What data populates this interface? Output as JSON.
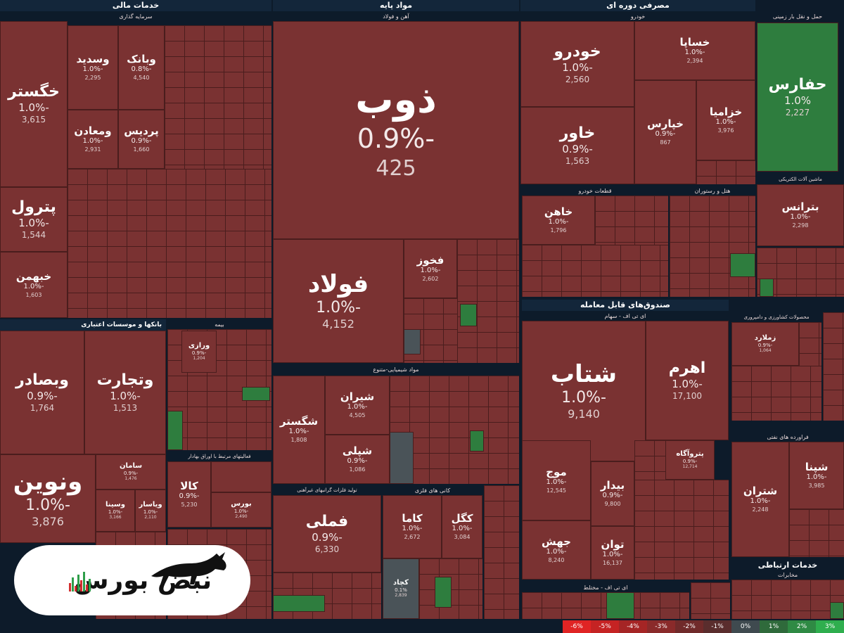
{
  "sectors": {
    "financial": {
      "title": "خدمات مالی",
      "sub": "سرمایه گذاری"
    },
    "base": {
      "title": "مواد پایه",
      "sub": "آهن و فولاد"
    },
    "cyclical": {
      "title": "مصرفی دوره ای",
      "sub": "خودرو"
    },
    "rail": {
      "title": "حمل و نقل بار زمینی"
    },
    "banks": {
      "title": "بانکها و موسسات اعتباری"
    },
    "insurance": {
      "title": "بیمه"
    },
    "chem": {
      "title": "مواد شیمیایی-متنوع"
    },
    "funds": {
      "title": "صندوق‌های قابل معامله",
      "sub": "ای تی اف - سهام"
    },
    "energy": {
      "title": "انرژی",
      "sub": "فراورده های نفتی"
    },
    "telecom": {
      "title": "خدمات ارتباطی",
      "sub": "مخابرات"
    },
    "metals": {
      "title": "کانی های فلزی"
    },
    "steelprod": {
      "title": "تولید فلزات گرانبهای غیرآهنی"
    },
    "machinery": {
      "title": "ماشین آلات الکتریکی"
    },
    "parts": {
      "title": "قطعات خودرو"
    },
    "hotel": {
      "title": "هتل و رستوران"
    },
    "agri": {
      "title": "محصولات کشاورزی و دامپروری"
    },
    "etfmixed": {
      "title": "ای تی اف - مختلط"
    },
    "bonds": {
      "title": "فعالیتهای مرتبط با اوراق بهادار"
    }
  },
  "tiles": [
    {
      "id": "zob",
      "name": "ذوب",
      "pct": "-0.9%",
      "val": "425"
    },
    {
      "id": "foolad",
      "name": "فولاد",
      "pct": "-1.0%",
      "val": "4,152"
    },
    {
      "id": "fakhooz",
      "name": "فخوز",
      "pct": "-1.0%",
      "val": "2,602"
    },
    {
      "id": "khodro",
      "name": "خودرو",
      "pct": "-1.0%",
      "val": "2,560"
    },
    {
      "id": "khavar",
      "name": "خاور",
      "pct": "-0.9%",
      "val": "1,563"
    },
    {
      "id": "khsapa",
      "name": "خساپا",
      "pct": "-1.0%",
      "val": "2,394"
    },
    {
      "id": "khpars",
      "name": "خپارس",
      "pct": "-0.9%",
      "val": "867"
    },
    {
      "id": "khzamia",
      "name": "خزامیا",
      "pct": "-1.0%",
      "val": "3,976"
    },
    {
      "id": "hafars",
      "name": "حفارس",
      "pct": "1.0%",
      "val": "2,227"
    },
    {
      "id": "khegostar",
      "name": "خگستر",
      "pct": "-1.0%",
      "val": "3,615"
    },
    {
      "id": "petrol",
      "name": "پترول",
      "pct": "-1.0%",
      "val": "1,544"
    },
    {
      "id": "khbahman",
      "name": "خبهمن",
      "pct": "-1.0%",
      "val": "1,603"
    },
    {
      "id": "vasadid",
      "name": "وسدید",
      "pct": "-1.0%",
      "val": "2,295"
    },
    {
      "id": "vabank",
      "name": "وبانک",
      "pct": "-0.8%",
      "val": "4,540"
    },
    {
      "id": "vamaaden",
      "name": "ومعادن",
      "pct": "-1.0%",
      "val": "2,931"
    },
    {
      "id": "pardis",
      "name": "پردیس",
      "pct": "-0.9%",
      "val": "1,660"
    },
    {
      "id": "vabsader",
      "name": "وبصادر",
      "pct": "-0.9%",
      "val": "1,764"
    },
    {
      "id": "vatejarat",
      "name": "وتجارت",
      "pct": "-1.0%",
      "val": "1,513"
    },
    {
      "id": "vanovin",
      "name": "ونوین",
      "pct": "-1.0%",
      "val": "3,876"
    },
    {
      "id": "shatab",
      "name": "شتاب",
      "pct": "-1.0%",
      "val": "9,140"
    },
    {
      "id": "ahrom",
      "name": "اهرم",
      "pct": "-1.0%",
      "val": "17,100"
    },
    {
      "id": "moj",
      "name": "موج",
      "pct": "-1.0%",
      "val": "12,545"
    },
    {
      "id": "jahesh",
      "name": "جهش",
      "pct": "-1.0%",
      "val": "8,240"
    },
    {
      "id": "tavan",
      "name": "توان",
      "pct": "-1.0%",
      "val": "16,137"
    },
    {
      "id": "shiran",
      "name": "شیران",
      "pct": "-1.0%",
      "val": "4,505"
    },
    {
      "id": "shegostar",
      "name": "شگستر",
      "pct": "-1.0%",
      "val": "1,808"
    },
    {
      "id": "shepli",
      "name": "شپلی",
      "pct": "-0.9%",
      "val": "1,086"
    },
    {
      "id": "femli",
      "name": "فملی",
      "pct": "-0.9%",
      "val": "6,330"
    },
    {
      "id": "kama",
      "name": "کاما",
      "pct": "-1.0%",
      "val": "2,672"
    },
    {
      "id": "kegol",
      "name": "کگل",
      "pct": "-1.0%",
      "val": "3,084"
    },
    {
      "id": "kachad",
      "name": "کچاد",
      "pct": "0.1%",
      "val": "2,839"
    },
    {
      "id": "betrans",
      "name": "بترانس",
      "pct": "-1.0%",
      "val": "2,298"
    },
    {
      "id": "khahen",
      "name": "خاهن",
      "pct": "-1.0%",
      "val": "1,796"
    },
    {
      "id": "shatran",
      "name": "شتران",
      "pct": "-1.0%",
      "val": "2,248"
    },
    {
      "id": "shepna",
      "name": "شپنا",
      "pct": "-1.0%",
      "val": "3,985"
    },
    {
      "id": "kala",
      "name": "کالا",
      "pct": "-0.9%",
      "val": "5,230"
    },
    {
      "id": "bours",
      "name": "بورس",
      "pct": "-1.0%",
      "val": "2,490"
    },
    {
      "id": "varazi",
      "name": "ورازی",
      "pct": "-0.9%",
      "val": "1,204"
    },
    {
      "id": "zemelard",
      "name": "زملارد",
      "pct": "-0.9%",
      "val": "1,064"
    },
    {
      "id": "petrovagah",
      "name": "پتروآگاه",
      "pct": "-0.9%",
      "val": "12,714"
    },
    {
      "id": "bidar",
      "name": "بیدار",
      "pct": "-0.9%",
      "val": "9,800"
    },
    {
      "id": "saman",
      "name": "سامان",
      "pct": "-0.9%",
      "val": "1,476"
    },
    {
      "id": "vasina",
      "name": "وسینا",
      "pct": "-1.0%",
      "val": "3,166"
    },
    {
      "id": "viasar",
      "name": "ویاسار",
      "pct": "-1.0%",
      "val": "2,110"
    }
  ],
  "legend": [
    "-6%",
    "-5%",
    "-4%",
    "-3%",
    "-2%",
    "-1%",
    "0%",
    "1%",
    "2%",
    "3%"
  ],
  "legend_colors": [
    "#e02424",
    "#c52323",
    "#a52525",
    "#8a2a2a",
    "#702a2a",
    "#5a2d2d",
    "#3f4a4f",
    "#2f6a3b",
    "#2f8a44",
    "#2fae4e"
  ],
  "logo": {
    "text": "نبض بورس"
  }
}
